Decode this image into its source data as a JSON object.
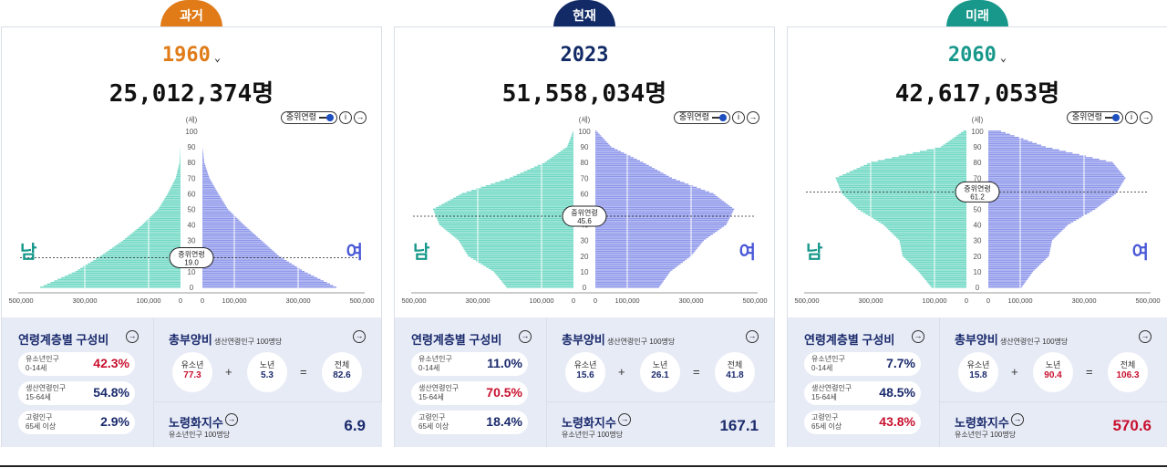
{
  "colors": {
    "past": "#e07b18",
    "present": "#122a66",
    "future": "#17988a",
    "male": "#6fd8c4",
    "female": "#8d96ea",
    "red": "#c8102e",
    "navy": "#1a2a6c"
  },
  "labels": {
    "median_toggle": "중위연령",
    "info": "i",
    "arrow": "→",
    "caret": "⌄",
    "male": "남",
    "female": "여",
    "composition_title": "연령계층별 구성비",
    "youth_line1": "유소년인구",
    "youth_line2": "0-14세",
    "working_line1": "생산연령인구",
    "working_line2": "15-64세",
    "elderly_line1": "고령인구",
    "elderly_line2": "65세 이상",
    "dependency_title": "총부양비",
    "dependency_sub": "생산연령인구 100명당",
    "youth_short": "유소년",
    "elderly_short": "노년",
    "total_short": "전체",
    "plus": "+",
    "equals": "=",
    "aging_title": "노령화지수",
    "aging_sub": "유소년인구 100명당"
  },
  "panels": [
    {
      "tag": "과거",
      "year": "1960",
      "total": "25,012,374명",
      "youth_pct": "42.3%",
      "working_pct": "54.8%",
      "elderly_pct": "2.9%",
      "dep_youth": "77.3",
      "dep_elderly": "5.3",
      "dep_total": "82.6",
      "aging_index": "6.9"
    },
    {
      "tag": "현재",
      "year": "2023",
      "total": "51,558,034명",
      "youth_pct": "11.0%",
      "working_pct": "70.5%",
      "elderly_pct": "18.4%",
      "dep_youth": "15.6",
      "dep_elderly": "26.1",
      "dep_total": "41.8",
      "aging_index": "167.1"
    },
    {
      "tag": "미래",
      "year": "2060",
      "total": "42,617,053명",
      "youth_pct": "7.7%",
      "working_pct": "48.5%",
      "elderly_pct": "43.8%",
      "dep_youth": "15.8",
      "dep_elderly": "90.4",
      "dep_total": "106.3",
      "aging_index": "570.6"
    }
  ],
  "chart_data": [
    {
      "type": "bar",
      "orientation": "horizontal-pyramid",
      "title": "1960",
      "ylabel": "(세)",
      "y_ticks": [
        "100",
        "90",
        "80",
        "70",
        "60",
        "50",
        "40",
        "30",
        "20",
        "10",
        "0"
      ],
      "x_ticks": [
        "500,000",
        "300,000",
        "100,000",
        "0",
        "0",
        "100,000",
        "300,000",
        "500,000"
      ],
      "xlim": [
        0,
        500000
      ],
      "ylim": [
        0,
        100
      ],
      "median_age": {
        "label": "중위연령",
        "value": "19.0"
      },
      "series": [
        {
          "name": "남",
          "values_by_age_decade": [
            440000,
            330000,
            250000,
            180000,
            120000,
            70000,
            40000,
            15000,
            3000,
            0,
            0
          ]
        },
        {
          "name": "여",
          "values_by_age_decade": [
            420000,
            320000,
            240000,
            185000,
            130000,
            80000,
            50000,
            22000,
            6000,
            0,
            0
          ]
        }
      ]
    },
    {
      "type": "bar",
      "orientation": "horizontal-pyramid",
      "title": "2023",
      "ylabel": "(세)",
      "y_ticks": [
        "100",
        "90",
        "80",
        "70",
        "60",
        "50",
        "40",
        "30",
        "20",
        "10",
        "0"
      ],
      "x_ticks": [
        "500,000",
        "300,000",
        "100,000",
        "0",
        "0",
        "100,000",
        "300,000",
        "500,000"
      ],
      "xlim": [
        0,
        500000
      ],
      "ylim": [
        0,
        100
      ],
      "median_age": {
        "label": "중위연령",
        "value": "45.6"
      },
      "series": [
        {
          "name": "남",
          "values_by_age_decade": [
            210000,
            250000,
            330000,
            360000,
            420000,
            440000,
            350000,
            200000,
            90000,
            20000,
            1000
          ]
        },
        {
          "name": "여",
          "values_by_age_decade": [
            200000,
            235000,
            300000,
            340000,
            410000,
            435000,
            370000,
            240000,
            150000,
            50000,
            4000
          ]
        }
      ]
    },
    {
      "type": "bar",
      "orientation": "horizontal-pyramid",
      "title": "2060",
      "ylabel": "(세)",
      "y_ticks": [
        "100",
        "90",
        "80",
        "70",
        "60",
        "50",
        "40",
        "30",
        "20",
        "10",
        "0"
      ],
      "x_ticks": [
        "500,000",
        "300,000",
        "100,000",
        "0",
        "0",
        "100,000",
        "300,000",
        "500,000"
      ],
      "xlim": [
        0,
        500000
      ],
      "ylim": [
        0,
        100
      ],
      "median_age": {
        "label": "중위연령",
        "value": "61.2"
      },
      "series": [
        {
          "name": "남",
          "values_by_age_decade": [
            110000,
            150000,
            200000,
            210000,
            260000,
            340000,
            390000,
            410000,
            300000,
            80000,
            10000
          ]
        },
        {
          "name": "여",
          "values_by_age_decade": [
            105000,
            140000,
            190000,
            200000,
            250000,
            335000,
            400000,
            430000,
            390000,
            180000,
            40000
          ]
        }
      ]
    }
  ]
}
